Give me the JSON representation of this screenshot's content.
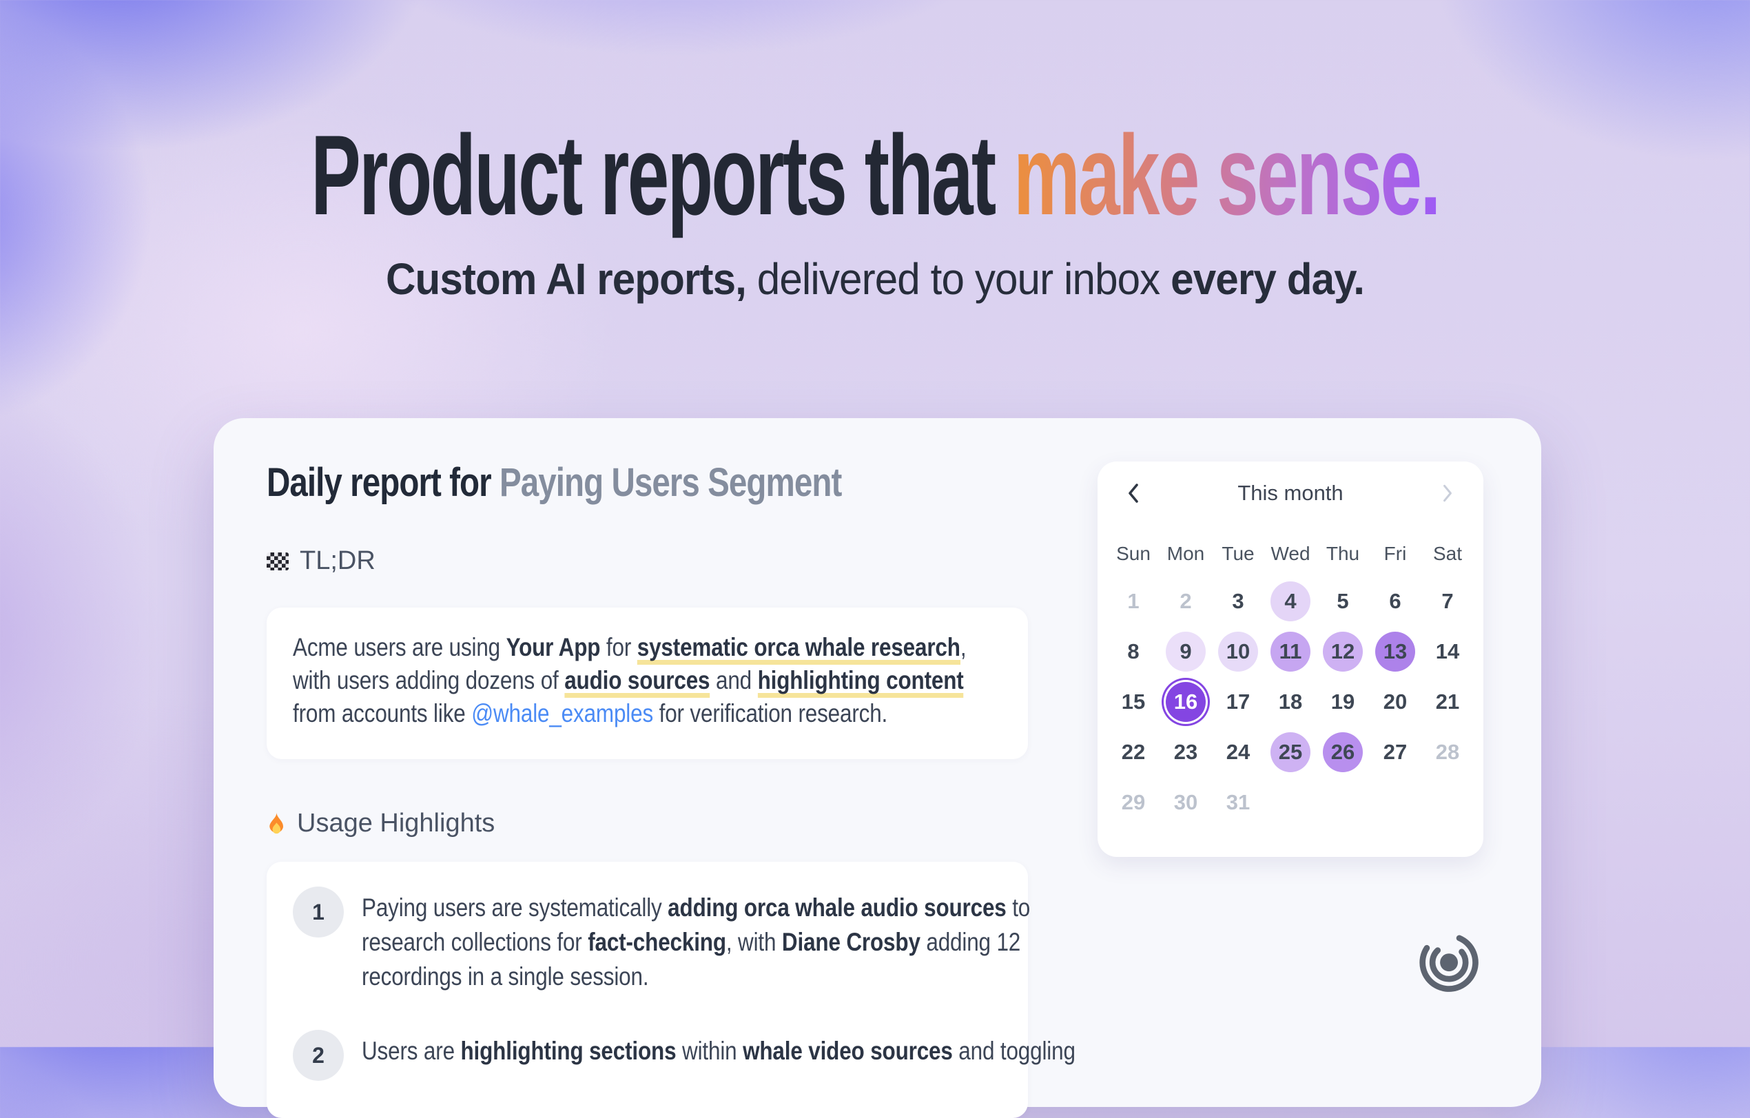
{
  "hero": {
    "title_plain": "Product reports that ",
    "title_gradient": "make sense.",
    "subtitle": [
      {
        "t": "Custom AI reports,",
        "b": true
      },
      {
        "t": " delivered to your inbox "
      },
      {
        "t": "every day.",
        "b": true
      }
    ]
  },
  "report": {
    "heading_dark": "Daily report for ",
    "heading_gray": "Paying Users Segment",
    "tldr": {
      "label": "TL;DR",
      "icon": "checkered-flag-icon",
      "body": [
        {
          "t": "Acme users are using "
        },
        {
          "t": "Your App",
          "b": true
        },
        {
          "t": " for "
        },
        {
          "t": "systematic orca whale research",
          "b": true,
          "u": true
        },
        {
          "t": ","
        },
        {
          "br": true
        },
        {
          "t": "with users adding dozens of "
        },
        {
          "t": "audio sources",
          "b": true,
          "u": true
        },
        {
          "t": " and "
        },
        {
          "t": "highlighting content",
          "b": true,
          "u": true
        },
        {
          "br": true
        },
        {
          "t": "from accounts like "
        },
        {
          "t": "@whale_examples",
          "link": true
        },
        {
          "t": " for verification research."
        }
      ]
    },
    "highlights": {
      "label": "Usage Highlights",
      "icon": "flame-icon",
      "items": [
        {
          "badge": "1",
          "body": [
            {
              "t": "Paying users are systematically "
            },
            {
              "t": "adding orca whale audio sources",
              "b": true
            },
            {
              "t": " to"
            },
            {
              "br": true
            },
            {
              "t": "research collections for "
            },
            {
              "t": "fact-checking",
              "b": true
            },
            {
              "t": ", with "
            },
            {
              "t": "Diane Crosby",
              "b": true
            },
            {
              "t": " adding 12"
            },
            {
              "br": true
            },
            {
              "t": "recordings in a single session."
            }
          ]
        },
        {
          "badge": "2",
          "body": [
            {
              "t": "Users are "
            },
            {
              "t": "highlighting sections",
              "b": true
            },
            {
              "t": " within "
            },
            {
              "t": "whale video sources",
              "b": true
            },
            {
              "t": " and toggling"
            }
          ]
        }
      ]
    }
  },
  "calendar": {
    "title": "This month",
    "weekdays": [
      "Sun",
      "Mon",
      "Tue",
      "Wed",
      "Thu",
      "Fri",
      "Sat"
    ],
    "days": [
      {
        "d": "1",
        "muted": true
      },
      {
        "d": "2",
        "muted": true
      },
      {
        "d": "3"
      },
      {
        "d": "4",
        "bg": "#E4D5F7"
      },
      {
        "d": "5"
      },
      {
        "d": "6"
      },
      {
        "d": "7"
      },
      {
        "d": "8"
      },
      {
        "d": "9",
        "bg": "#EBDFF9"
      },
      {
        "d": "10",
        "bg": "#E7DBF8"
      },
      {
        "d": "11",
        "bg": "#C6A6F1"
      },
      {
        "d": "12",
        "bg": "#CEB1F3"
      },
      {
        "d": "13",
        "bg": "#AD82EA"
      },
      {
        "d": "14"
      },
      {
        "d": "15"
      },
      {
        "d": "16",
        "selected": true
      },
      {
        "d": "17"
      },
      {
        "d": "18"
      },
      {
        "d": "19"
      },
      {
        "d": "20"
      },
      {
        "d": "21"
      },
      {
        "d": "22"
      },
      {
        "d": "23"
      },
      {
        "d": "24"
      },
      {
        "d": "25",
        "bg": "#CEB2F3"
      },
      {
        "d": "26",
        "bg": "#B88FEE"
      },
      {
        "d": "27"
      },
      {
        "d": "28",
        "muted": true
      },
      {
        "d": "29",
        "muted": true
      },
      {
        "d": "30",
        "muted": true
      },
      {
        "d": "31",
        "muted": true
      }
    ]
  },
  "colors": {
    "accent_purple": "#8445E2",
    "title_gradient": [
      "#EC8F3E",
      "#D57C85",
      "#BC72C9",
      "#9E5BF5"
    ],
    "link_blue": "#4B8BF5",
    "highlight_yellow": "#F6E49A",
    "text_dark": "#232834",
    "text_gray": "#848D9E",
    "card_bg": "#F7F8FC"
  }
}
